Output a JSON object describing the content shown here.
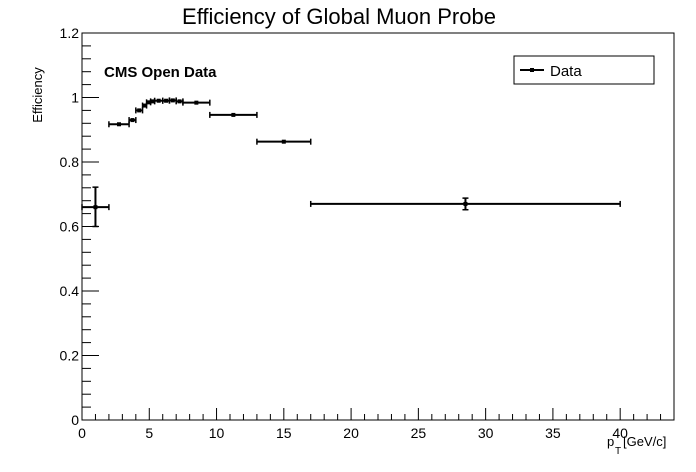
{
  "chart_data": {
    "type": "scatter",
    "title": "Efficiency of Global Muon Probe",
    "xlabel_main": "p",
    "xlabel_sub": "T",
    "xlabel_unit": "[GeV/c]",
    "ylabel": "Efficiency",
    "annotation": "CMS Open Data",
    "xlim": [
      0,
      44
    ],
    "ylim": [
      0,
      1.2
    ],
    "x_ticks": [
      0,
      5,
      10,
      15,
      20,
      25,
      30,
      35,
      40
    ],
    "y_ticks": [
      0,
      0.2,
      0.4,
      0.6,
      0.8,
      1,
      1.2
    ],
    "x_tick_labels": [
      "0",
      "5",
      "10",
      "15",
      "20",
      "25",
      "30",
      "35",
      "40"
    ],
    "y_tick_labels": [
      "0",
      "0.2",
      "0.4",
      "0.6",
      "0.8",
      "1",
      "1.2"
    ],
    "legend": {
      "placement": "top-right",
      "entries": [
        "Data"
      ]
    },
    "series": [
      {
        "name": "Data",
        "color": "#000000",
        "points": [
          {
            "x": 1.0,
            "xlo": 0.0,
            "xhi": 2.0,
            "y": 0.66,
            "ylo": 0.6,
            "yhi": 0.722
          },
          {
            "x": 2.75,
            "xlo": 2.0,
            "xhi": 3.5,
            "y": 0.917,
            "ylo": 0.912,
            "yhi": 0.922
          },
          {
            "x": 3.75,
            "xlo": 3.5,
            "xhi": 4.0,
            "y": 0.93,
            "ylo": 0.926,
            "yhi": 0.934
          },
          {
            "x": 4.25,
            "xlo": 4.0,
            "xhi": 4.5,
            "y": 0.96,
            "ylo": 0.956,
            "yhi": 0.964
          },
          {
            "x": 4.65,
            "xlo": 4.5,
            "xhi": 4.8,
            "y": 0.975,
            "ylo": 0.972,
            "yhi": 0.978
          },
          {
            "x": 4.95,
            "xlo": 4.8,
            "xhi": 5.1,
            "y": 0.985,
            "ylo": 0.982,
            "yhi": 0.988
          },
          {
            "x": 5.25,
            "xlo": 5.1,
            "xhi": 5.4,
            "y": 0.988,
            "ylo": 0.985,
            "yhi": 0.991
          },
          {
            "x": 5.7,
            "xlo": 5.4,
            "xhi": 6.0,
            "y": 0.99,
            "ylo": 0.987,
            "yhi": 0.993
          },
          {
            "x": 6.25,
            "xlo": 6.0,
            "xhi": 6.5,
            "y": 0.99,
            "ylo": 0.987,
            "yhi": 0.993
          },
          {
            "x": 6.75,
            "xlo": 6.5,
            "xhi": 7.0,
            "y": 0.991,
            "ylo": 0.988,
            "yhi": 0.994
          },
          {
            "x": 7.25,
            "xlo": 7.0,
            "xhi": 7.5,
            "y": 0.988,
            "ylo": 0.985,
            "yhi": 0.991
          },
          {
            "x": 8.5,
            "xlo": 7.5,
            "xhi": 9.5,
            "y": 0.984,
            "ylo": 0.981,
            "yhi": 0.987
          },
          {
            "x": 11.25,
            "xlo": 9.5,
            "xhi": 13.0,
            "y": 0.946,
            "ylo": 0.942,
            "yhi": 0.95
          },
          {
            "x": 15.0,
            "xlo": 13.0,
            "xhi": 17.0,
            "y": 0.863,
            "ylo": 0.858,
            "yhi": 0.868
          },
          {
            "x": 28.5,
            "xlo": 17.0,
            "xhi": 40.0,
            "y": 0.67,
            "ylo": 0.652,
            "yhi": 0.688
          }
        ]
      }
    ]
  }
}
